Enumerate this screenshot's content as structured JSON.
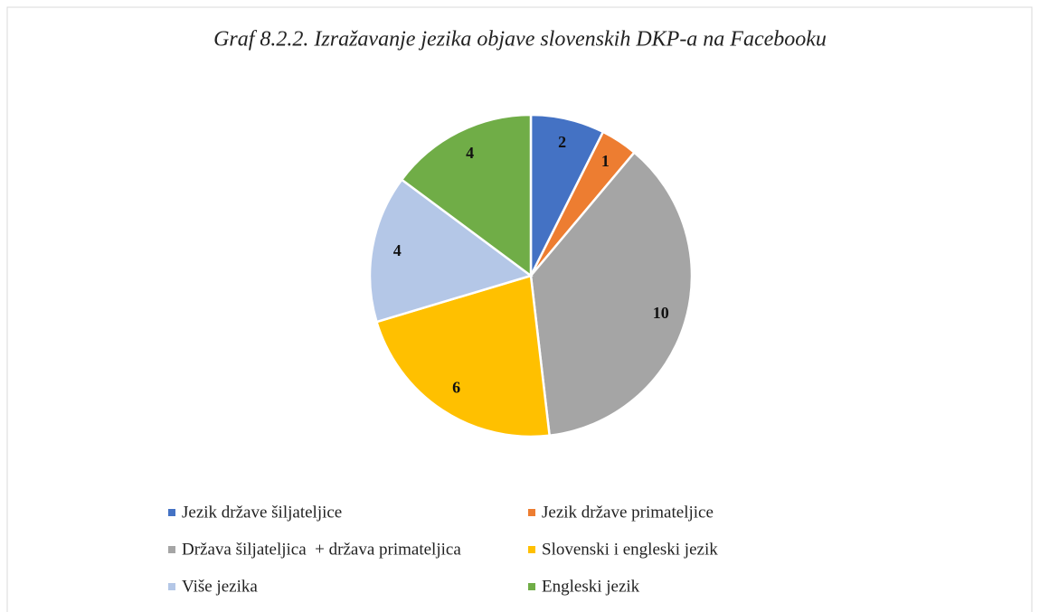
{
  "chart_data": {
    "type": "pie",
    "title": "Graf 8.2.2. Izražavanje jezika objave slovenskih DKP-a na Facebooku",
    "categories": [
      "Jezik države šiljateljice",
      "Jezik države primateljice",
      "Država šiljateljica  + država primateljica",
      "Slovenski i engleski jezik",
      "Više jezika",
      "Engleski jezik"
    ],
    "values": [
      2,
      1,
      10,
      6,
      4,
      4
    ],
    "colors": [
      "#4472c4",
      "#ed7d31",
      "#a5a5a5",
      "#ffc000",
      "#b4c7e7",
      "#70ad47"
    ],
    "legend": "bottom"
  }
}
